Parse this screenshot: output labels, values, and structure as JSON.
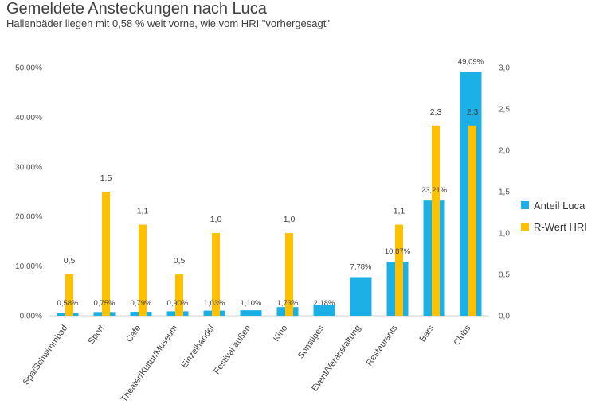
{
  "chart_data": {
    "type": "bar",
    "title": "Gemeldete Ansteckungen nach Luca",
    "subtitle": "Hallenbäder liegen mit 0,58 % weit vorne, wie vom HRI \"vorhergesagt\"",
    "categories": [
      "Spa/Schwimmbad",
      "Sport",
      "Cafe",
      "Theater/Kultur/Museum",
      "Einzelhandel",
      "Festival außen",
      "Kino",
      "Sonstiges",
      "Event/Veranstaltung",
      "Restaurants",
      "Bars",
      "Clubs"
    ],
    "series": [
      {
        "name": "Anteil Luca",
        "axis": "left",
        "color": "#1cb0e6",
        "values": [
          0.58,
          0.75,
          0.79,
          0.9,
          1.03,
          1.1,
          1.73,
          2.18,
          7.78,
          10.87,
          23.21,
          49.09
        ],
        "labels": [
          "0,58%",
          "0,75%",
          "0,79%",
          "0,90%",
          "1,03%",
          "1,10%",
          "1,73%",
          "2,18%",
          "7,78%",
          "10,87%",
          "23,21%",
          "49,09%"
        ]
      },
      {
        "name": "R-Wert HRI",
        "axis": "right",
        "color": "#ffc000",
        "values": [
          0.5,
          1.5,
          1.1,
          0.5,
          1.0,
          null,
          1.0,
          null,
          null,
          1.1,
          2.3,
          2.3
        ],
        "labels": [
          "0,5",
          "1,5",
          "1,1",
          "0,5",
          "1,0",
          "",
          "1,0",
          "",
          "",
          "1,1",
          "2,3",
          "2,3"
        ]
      }
    ],
    "y_left": {
      "ylim": [
        0,
        50
      ],
      "ticks": [
        0,
        10,
        20,
        30,
        40,
        50
      ],
      "tick_labels": [
        "0,00%",
        "10,00%",
        "20,00%",
        "30,00%",
        "40,00%",
        "50,00%"
      ]
    },
    "y_right": {
      "ylim": [
        0,
        3
      ],
      "ticks": [
        0,
        0.5,
        1,
        1.5,
        2,
        2.5,
        3
      ],
      "tick_labels": [
        "0,0",
        "0,5",
        "1,0",
        "1,5",
        "2,0",
        "2,5",
        "3,0"
      ]
    },
    "grid": false,
    "legend": "right"
  }
}
